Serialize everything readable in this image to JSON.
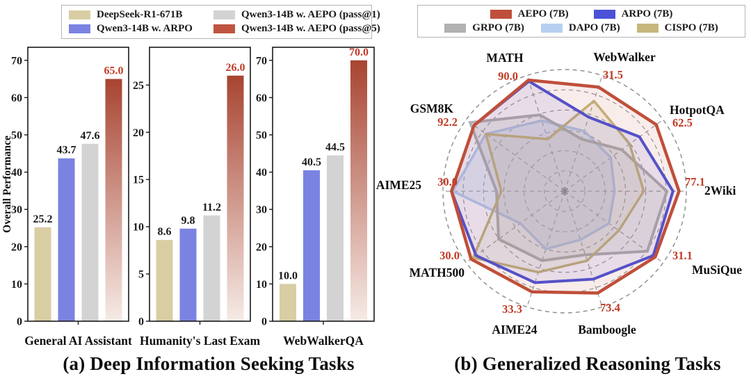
{
  "captions": {
    "left": "(a) Deep Information Seeking Tasks",
    "right": "(b) Generalized Reasoning Tasks"
  },
  "legend_left": {
    "items": [
      {
        "label": "DeepSeek-R1-671B",
        "color": "#d9cda4"
      },
      {
        "label": "Qwen3-14B w. AEPO (pass@1)",
        "color": "#d3d3d3"
      },
      {
        "label": "Qwen3-14B w. ARPO",
        "color": "#7b83e2"
      },
      {
        "label": "Qwen3-14B w. AEPO (pass@5)",
        "color": "#bf5440"
      }
    ]
  },
  "legend_right": {
    "items": [
      {
        "label": "AEPO (7B)",
        "color": "#bf4f3a"
      },
      {
        "label": "ARPO (7B)",
        "color": "#4a52d8"
      },
      {
        "label": "GRPO (7B)",
        "color": "#b1b1b1"
      },
      {
        "label": "DAPO (7B)",
        "color": "#b7d0f1"
      },
      {
        "label": "CISPO (7B)",
        "color": "#c6b77c"
      }
    ]
  },
  "bar_style": {
    "colors": [
      "#d9cda4",
      "#7b83e2",
      "#d3d3d3",
      "gradient"
    ],
    "gradient_top": "#a84431",
    "gradient_bottom": "#f6ebe6",
    "value_label_colors": [
      "#1a1a1a",
      "#1a1a1a",
      "#1a1a1a",
      "#c13b27"
    ],
    "axis_color": "#1a1a1a"
  },
  "chart_data": [
    {
      "type": "bar",
      "title": "General AI Assistant",
      "ylabel": "Overall Performance",
      "categories": [
        "DeepSeek-R1-671B",
        "Qwen3-14B w. ARPO",
        "Qwen3-14B w. AEPO (pass@1)",
        "Qwen3-14B w. AEPO (pass@5)"
      ],
      "values": [
        25.2,
        43.7,
        47.6,
        65.0
      ],
      "ylim": [
        0,
        73.5
      ],
      "yticks": [
        0,
        10,
        20,
        30,
        40,
        50,
        60,
        70
      ]
    },
    {
      "type": "bar",
      "title": "Humanity's Last Exam",
      "categories": [
        "DeepSeek-R1-671B",
        "Qwen3-14B w. ARPO",
        "Qwen3-14B w. AEPO (pass@1)",
        "Qwen3-14B w. AEPO (pass@5)"
      ],
      "values": [
        8.6,
        9.8,
        11.2,
        26.0
      ],
      "ylim": [
        0,
        29
      ],
      "yticks": [
        0,
        5,
        10,
        15,
        20,
        25
      ]
    },
    {
      "type": "bar",
      "title": "WebWalkerQA",
      "categories": [
        "DeepSeek-R1-671B",
        "Qwen3-14B w. ARPO",
        "Qwen3-14B w. AEPO (pass@1)",
        "Qwen3-14B w. AEPO (pass@5)"
      ],
      "values": [
        10.0,
        40.5,
        44.5,
        70.0
      ],
      "ylim": [
        0,
        73.5
      ],
      "yticks": [
        0,
        10,
        20,
        30,
        40,
        50,
        60,
        70
      ]
    },
    {
      "type": "radar",
      "value_color": "#c13b27",
      "grid": {
        "rings": 6,
        "color": "#979797",
        "dash": "6,5"
      },
      "axes": [
        {
          "label": "2Wiki",
          "value": 77.1,
          "angle": 0
        },
        {
          "label": "HotpotQA",
          "value": 62.5,
          "angle": 36
        },
        {
          "label": "WebWalker",
          "value": 31.5,
          "angle": 72
        },
        {
          "label": "MATH",
          "value": 90.0,
          "angle": 108
        },
        {
          "label": "GSM8K",
          "value": 92.2,
          "angle": 144
        },
        {
          "label": "AIME25",
          "value": 30.0,
          "angle": 180
        },
        {
          "label": "MATH500",
          "value": 30.0,
          "angle": 216
        },
        {
          "label": "AIME24",
          "value": 33.3,
          "angle": 252
        },
        {
          "label": "Bamboogle",
          "value": 73.4,
          "angle": 288
        },
        {
          "label": "MuSiQue",
          "value": 31.1,
          "angle": 324
        }
      ],
      "series": [
        {
          "name": "AEPO (7B)",
          "color": "#bf4f3a",
          "fill": "rgba(191,79,58,0.10)",
          "width": 4.5,
          "values_norm": [
            0.94,
            0.93,
            0.9,
            0.96,
            0.92,
            0.93,
            0.95,
            0.87,
            0.88,
            0.92
          ]
        },
        {
          "name": "ARPO (7B)",
          "color": "#4a52d8",
          "fill": "rgba(73,82,214,0.10)",
          "width": 4,
          "values_norm": [
            0.89,
            0.76,
            0.64,
            0.95,
            0.92,
            0.93,
            0.9,
            0.79,
            0.76,
            0.9
          ]
        },
        {
          "name": "GRPO (7B)",
          "color": "#b1b1b1",
          "fill": "rgba(170,170,170,0.18)",
          "width": 4,
          "values_norm": [
            0.84,
            0.58,
            0.45,
            0.66,
            0.96,
            0.56,
            0.67,
            0.6,
            0.55,
            0.84
          ]
        },
        {
          "name": "DAPO (7B)",
          "color": "#b7d0f1",
          "fill": "rgba(181,207,242,0.30)",
          "width": 3.5,
          "values_norm": [
            0.41,
            0.47,
            0.52,
            0.61,
            0.8,
            0.92,
            0.45,
            0.5,
            0.42,
            0.45
          ]
        },
        {
          "name": "CISPO (7B)",
          "color": "#c6b77c",
          "fill": "rgba(199,183,123,0.12)",
          "width": 3.5,
          "values_norm": [
            0.65,
            0.66,
            0.78,
            0.45,
            0.8,
            0.52,
            0.93,
            0.7,
            0.6,
            0.55
          ]
        }
      ],
      "draw_order": [
        3,
        2,
        4,
        1,
        0
      ]
    }
  ]
}
